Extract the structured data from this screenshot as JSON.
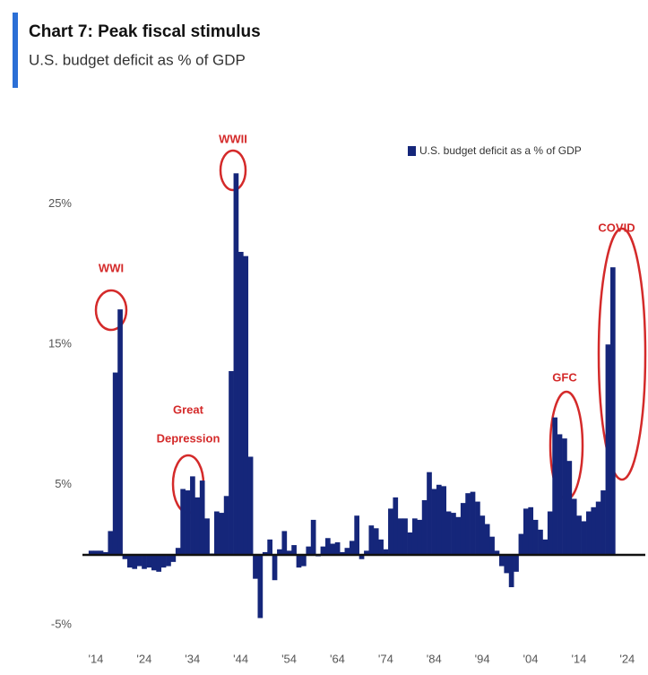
{
  "chart_data": {
    "type": "bar",
    "title": "Chart 7: Peak fiscal stimulus",
    "subtitle": "U.S. budget deficit as % of GDP",
    "x": [
      1913,
      1914,
      1915,
      1916,
      1917,
      1918,
      1919,
      1920,
      1921,
      1922,
      1923,
      1924,
      1925,
      1926,
      1927,
      1928,
      1929,
      1930,
      1931,
      1932,
      1933,
      1934,
      1935,
      1936,
      1937,
      1938,
      1939,
      1940,
      1941,
      1942,
      1943,
      1944,
      1945,
      1946,
      1947,
      1948,
      1949,
      1950,
      1951,
      1952,
      1953,
      1954,
      1955,
      1956,
      1957,
      1958,
      1959,
      1960,
      1961,
      1962,
      1963,
      1964,
      1965,
      1966,
      1967,
      1968,
      1969,
      1970,
      1971,
      1972,
      1973,
      1974,
      1975,
      1976,
      1977,
      1978,
      1979,
      1980,
      1981,
      1982,
      1983,
      1984,
      1985,
      1986,
      1987,
      1988,
      1989,
      1990,
      1991,
      1992,
      1993,
      1994,
      1995,
      1996,
      1997,
      1998,
      1999,
      2000,
      2001,
      2002,
      2003,
      2004,
      2005,
      2006,
      2007,
      2008,
      2009,
      2010,
      2011,
      2012,
      2013,
      2014,
      2015,
      2016,
      2017,
      2018,
      2019,
      2020,
      2021
    ],
    "series": [
      {
        "name": "U.S. budget deficit as a % of GDP",
        "color": "#15267a",
        "values": [
          0.3,
          0.3,
          0.3,
          0.2,
          1.7,
          13,
          17.5,
          -0.3,
          -0.9,
          -1.0,
          -0.8,
          -1.0,
          -0.9,
          -1.1,
          -1.2,
          -0.9,
          -0.8,
          -0.5,
          0.5,
          4.7,
          4.6,
          5.6,
          4.1,
          5.3,
          2.6,
          0.1,
          3.1,
          3.0,
          4.2,
          13.1,
          27.2,
          21.6,
          21.3,
          7.0,
          -1.7,
          -4.5,
          0.2,
          1.1,
          -1.8,
          0.4,
          1.7,
          0.3,
          0.7,
          -0.9,
          -0.8,
          0.6,
          2.5,
          -0.1,
          0.6,
          1.2,
          0.8,
          0.9,
          0.2,
          0.5,
          1.0,
          2.8,
          -0.3,
          0.3,
          2.1,
          1.9,
          1.1,
          0.4,
          3.3,
          4.1,
          2.6,
          2.6,
          1.6,
          2.6,
          2.5,
          3.9,
          5.9,
          4.7,
          5.0,
          4.9,
          3.1,
          3.0,
          2.7,
          3.7,
          4.4,
          4.5,
          3.8,
          2.8,
          2.2,
          1.3,
          0.3,
          -0.8,
          -1.3,
          -2.3,
          -1.2,
          1.5,
          3.3,
          3.4,
          2.5,
          1.8,
          1.1,
          3.1,
          9.8,
          8.6,
          8.3,
          6.7,
          4.0,
          2.8,
          2.4,
          3.1,
          3.4,
          3.8,
          4.6,
          15.0,
          20.5
        ]
      }
    ],
    "xlim": [
      1910,
      2027
    ],
    "xticks": [
      {
        "value": 1914,
        "label": "'14"
      },
      {
        "value": 1924,
        "label": "'24"
      },
      {
        "value": 1934,
        "label": "'34"
      },
      {
        "value": 1944,
        "label": "'44"
      },
      {
        "value": 1954,
        "label": "'54"
      },
      {
        "value": 1964,
        "label": "'64"
      },
      {
        "value": 1974,
        "label": "'74"
      },
      {
        "value": 1984,
        "label": "'84"
      },
      {
        "value": 1994,
        "label": "'94"
      },
      {
        "value": 2004,
        "label": "'04"
      },
      {
        "value": 2014,
        "label": "'14"
      },
      {
        "value": 2024,
        "label": "'24"
      }
    ],
    "ylim": [
      -7,
      30
    ],
    "yticks": [
      {
        "value": -5,
        "label": "-5%"
      },
      {
        "value": 5,
        "label": "5%"
      },
      {
        "value": 15,
        "label": "15%"
      },
      {
        "value": 25,
        "label": "25%"
      }
    ],
    "legend": "top-right",
    "annotations": [
      {
        "lines": [
          "WWI"
        ]
      },
      {
        "lines": [
          "WWII"
        ]
      },
      {
        "lines": [
          "Great",
          "Depression"
        ]
      },
      {
        "lines": [
          "GFC"
        ]
      },
      {
        "lines": [
          "COVID"
        ]
      }
    ],
    "annotation_color": "#d42a2a"
  }
}
